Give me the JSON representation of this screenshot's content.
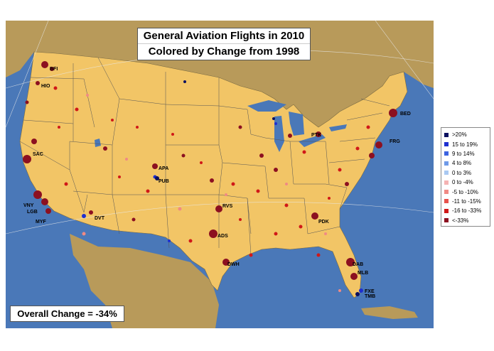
{
  "title": {
    "line1": "General Aviation Flights in 2010",
    "line2": "Colored by Change from 1998"
  },
  "overall_change": "Overall Change = -34%",
  "colors": {
    "ocean": "#4a78b8",
    "land_us": "#f2c566",
    "land_foreign": "#b89a5a",
    "state_border": "#555555"
  },
  "legend": {
    "items": [
      {
        "label": ">20%",
        "color": "#0a1060"
      },
      {
        "label": "15 to 19%",
        "color": "#1e2fd0"
      },
      {
        "label": "9 to 14%",
        "color": "#3c63e0"
      },
      {
        "label": "4 to 8%",
        "color": "#6f9ae8"
      },
      {
        "label": "0 to 3%",
        "color": "#a9c9f2"
      },
      {
        "label": "0 to -4%",
        "color": "#f5b3b3"
      },
      {
        "label": "-5 to -10%",
        "color": "#f08a84"
      },
      {
        "label": "-11 to -15%",
        "color": "#e8524c"
      },
      {
        "label": "-16 to -33%",
        "color": "#d01818"
      },
      {
        "label": "<-33%",
        "color": "#8c1020"
      }
    ]
  },
  "airports": [
    {
      "code": "BFI"
    },
    {
      "code": "HIO"
    },
    {
      "code": "SAC"
    },
    {
      "code": "VNY"
    },
    {
      "code": "LGB"
    },
    {
      "code": "MYF"
    },
    {
      "code": "DVT"
    },
    {
      "code": "APA"
    },
    {
      "code": "PUB"
    },
    {
      "code": "RVS"
    },
    {
      "code": "ADS"
    },
    {
      "code": "DWH"
    },
    {
      "code": "PDK"
    },
    {
      "code": "PTK"
    },
    {
      "code": "BED"
    },
    {
      "code": "FRG"
    },
    {
      "code": "DAB"
    },
    {
      "code": "MLB"
    },
    {
      "code": "FXE"
    },
    {
      "code": "TMB"
    }
  ]
}
